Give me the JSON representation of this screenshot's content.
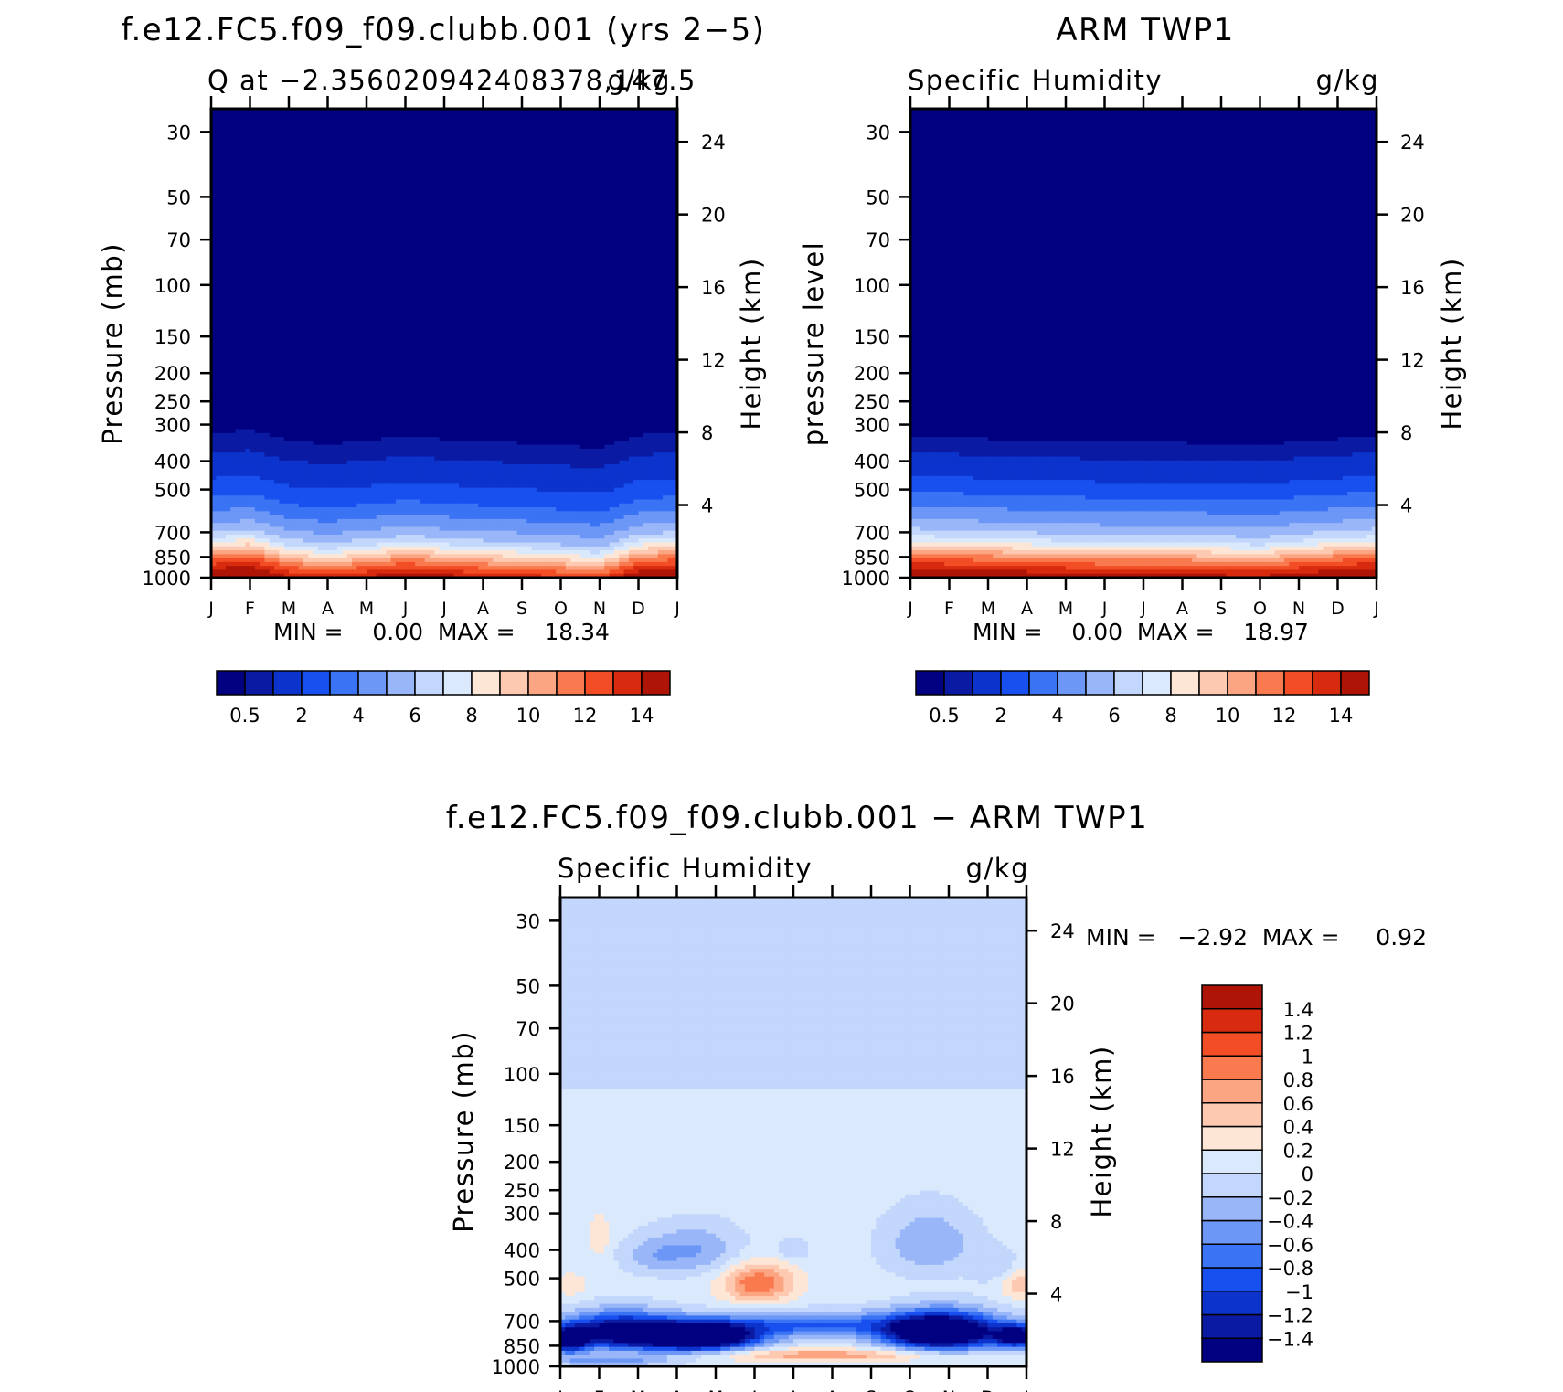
{
  "chart_data": [
    {
      "id": "model",
      "type": "heatmap",
      "title": "f.e12.FC5.f09_f09.clubb.001 (yrs 2−5)",
      "subtitle_left": "Q at −2.356020942408378,147.5",
      "subtitle_right": "g/kg",
      "ylabel": "Pressure (mb)",
      "ylabel_right": "Height (km)",
      "x_ticks": [
        "J",
        "F",
        "M",
        "A",
        "M",
        "J",
        "J",
        "A",
        "S",
        "O",
        "N",
        "D",
        "J"
      ],
      "p_ticks": [
        30,
        50,
        70,
        100,
        150,
        200,
        250,
        300,
        400,
        500,
        700,
        850,
        1000
      ],
      "z_ticks": [
        24,
        20,
        16,
        12,
        8,
        4
      ],
      "ylim": [
        1000,
        25
      ],
      "stats_text": "MIN =    0.00  MAX =    18.34",
      "min": 0.0,
      "max": 18.34,
      "colorbar": {
        "orientation": "horizontal",
        "levels": [
          0.5,
          1,
          2,
          3,
          4,
          5,
          6,
          7,
          8,
          9,
          10,
          11,
          12,
          13,
          14
        ],
        "labels": [
          "0.5",
          "2",
          "4",
          "6",
          "8",
          "10",
          "12",
          "14"
        ]
      },
      "field": "q_profile",
      "bands": [
        {
          "p": 280,
          "v": 0.2
        },
        {
          "p": 350,
          "v": 0.7
        },
        {
          "p": 420,
          "v": 1.5
        },
        {
          "p": 500,
          "v": 2.5
        },
        {
          "p": 560,
          "v": 3.5
        },
        {
          "p": 620,
          "v": 4.5
        },
        {
          "p": 680,
          "v": 5.5
        },
        {
          "p": 730,
          "v": 7
        },
        {
          "p": 770,
          "v": 8.5
        },
        {
          "p": 810,
          "v": 10
        },
        {
          "p": 850,
          "v": 11.5
        },
        {
          "p": 900,
          "v": 13
        },
        {
          "p": 950,
          "v": 14.5
        }
      ],
      "monthly_shift": [
        0,
        -0.02,
        0.06,
        0.09,
        0.06,
        0.03,
        0.05,
        0.07,
        0.08,
        0.1,
        0.12,
        0.02,
        0
      ]
    },
    {
      "id": "obs",
      "type": "heatmap",
      "title": "ARM TWP1",
      "subtitle_left": "Specific Humidity",
      "subtitle_right": "g/kg",
      "ylabel": "pressure level",
      "ylabel_right": "Height (km)",
      "x_ticks": [
        "J",
        "F",
        "M",
        "A",
        "M",
        "J",
        "J",
        "A",
        "S",
        "O",
        "N",
        "D",
        "J"
      ],
      "p_ticks": [
        30,
        50,
        70,
        100,
        150,
        200,
        250,
        300,
        400,
        500,
        700,
        850,
        1000
      ],
      "z_ticks": [
        24,
        20,
        16,
        12,
        8,
        4
      ],
      "ylim": [
        1000,
        25
      ],
      "stats_text": "MIN =    0.00  MAX =    18.97",
      "min": 0.0,
      "max": 18.97,
      "colorbar": {
        "orientation": "horizontal",
        "levels": [
          0.5,
          1,
          2,
          3,
          4,
          5,
          6,
          7,
          8,
          9,
          10,
          11,
          12,
          13,
          14
        ],
        "labels": [
          "0.5",
          "2",
          "4",
          "6",
          "8",
          "10",
          "12",
          "14"
        ]
      },
      "field": "q_profile",
      "bands": [
        {
          "p": 300,
          "v": 0.2
        },
        {
          "p": 350,
          "v": 0.7
        },
        {
          "p": 420,
          "v": 1.5
        },
        {
          "p": 480,
          "v": 2.5
        },
        {
          "p": 540,
          "v": 3.5
        },
        {
          "p": 600,
          "v": 4.5
        },
        {
          "p": 660,
          "v": 5.5
        },
        {
          "p": 720,
          "v": 7
        },
        {
          "p": 760,
          "v": 8.5
        },
        {
          "p": 800,
          "v": 10
        },
        {
          "p": 840,
          "v": 11.5
        },
        {
          "p": 890,
          "v": 13
        },
        {
          "p": 945,
          "v": 14.5
        }
      ],
      "monthly_shift": [
        0,
        0.01,
        0.02,
        0.03,
        0.04,
        0.05,
        0.05,
        0.05,
        0.06,
        0.07,
        0.04,
        0.02,
        0
      ]
    },
    {
      "id": "diff",
      "type": "heatmap",
      "title": "f.e12.FC5.f09_f09.clubb.001 − ARM TWP1",
      "subtitle_left": "Specific Humidity",
      "subtitle_right": "g/kg",
      "ylabel": "Pressure (mb)",
      "ylabel_right": "Height (km)",
      "x_ticks": [
        "J",
        "F",
        "M",
        "A",
        "M",
        "J",
        "J",
        "A",
        "S",
        "O",
        "N",
        "D",
        "J"
      ],
      "p_ticks": [
        30,
        50,
        70,
        100,
        150,
        200,
        250,
        300,
        400,
        500,
        700,
        850,
        1000
      ],
      "z_ticks": [
        24,
        20,
        16,
        12,
        8,
        4
      ],
      "ylim": [
        1000,
        25
      ],
      "stats_text": "MIN =   −2.92  MAX =     0.92",
      "min": -2.92,
      "max": 0.92,
      "colorbar": {
        "orientation": "vertical",
        "levels": [
          -1.4,
          -1.2,
          -1,
          -0.8,
          -0.6,
          -0.4,
          -0.2,
          0,
          0.2,
          0.4,
          0.6,
          0.8,
          1,
          1.2,
          1.4
        ],
        "labels": [
          "1.4",
          "1.2",
          "1",
          "0.8",
          "0.6",
          "0.4",
          "0.2",
          "0",
          "−0.2",
          "−0.4",
          "−0.6",
          "−0.8",
          "−1",
          "−1.2",
          "−1.4"
        ]
      },
      "field": "diff_blobs",
      "base": [
        {
          "p_top": 25,
          "p_bot": 112,
          "v": -0.1
        },
        {
          "p_top": 112,
          "p_bot": 1000,
          "v": 0.1
        }
      ],
      "blobs": [
        {
          "month": 1.0,
          "p": 360,
          "dm": 0.25,
          "dp": 60,
          "v": 0.3
        },
        {
          "month": 3.5,
          "p": 400,
          "dm": 1.2,
          "dp": 80,
          "v": -0.5
        },
        {
          "month": 2.3,
          "p": 420,
          "dm": 0.8,
          "dp": 60,
          "v": -0.3
        },
        {
          "month": 9.5,
          "p": 380,
          "dm": 1.2,
          "dp": 100,
          "v": -0.5
        },
        {
          "month": 11.3,
          "p": 470,
          "dm": 0.6,
          "dp": 70,
          "v": -0.3
        },
        {
          "month": 6.0,
          "p": 400,
          "dm": 0.4,
          "dp": 40,
          "v": -0.3
        },
        {
          "month": 5.1,
          "p": 520,
          "dm": 0.9,
          "dp": 80,
          "v": 0.9
        },
        {
          "month": 11.8,
          "p": 520,
          "dm": 0.6,
          "dp": 60,
          "v": 0.5
        },
        {
          "month": 0.3,
          "p": 530,
          "dm": 0.4,
          "dp": 50,
          "v": 0.25
        },
        {
          "month": 1.5,
          "p": 760,
          "dm": 1.4,
          "dp": 110,
          "v": -1.7
        },
        {
          "month": 3.6,
          "p": 790,
          "dm": 1.5,
          "dp": 90,
          "v": -2.5
        },
        {
          "month": 9.8,
          "p": 760,
          "dm": 1.5,
          "dp": 110,
          "v": -2.5
        },
        {
          "month": 6.5,
          "p": 720,
          "dm": 2.2,
          "dp": 70,
          "v": -0.9
        },
        {
          "month": 11.8,
          "p": 790,
          "dm": 0.6,
          "dp": 70,
          "v": -1.6
        },
        {
          "month": 0.2,
          "p": 810,
          "dm": 0.5,
          "dp": 80,
          "v": -1.8
        },
        {
          "month": 6.8,
          "p": 915,
          "dm": 3.0,
          "dp": 45,
          "v": 0.65
        },
        {
          "month": 1.3,
          "p": 960,
          "dm": 1.6,
          "dp": 40,
          "v": -0.6
        }
      ]
    }
  ],
  "colors": {
    "nine_levels": [
      "#000080",
      "#0a1aa2",
      "#0c33cc",
      "#1850f0",
      "#3a73f4",
      "#6c97f6",
      "#98b6f8",
      "#c3d6fb",
      "#dbe9fd",
      "#fde6d6",
      "#fdc9b1",
      "#fca582",
      "#fa7a4f",
      "#f24d24",
      "#d72a0e",
      "#ae1506",
      "#7e0000"
    ]
  }
}
